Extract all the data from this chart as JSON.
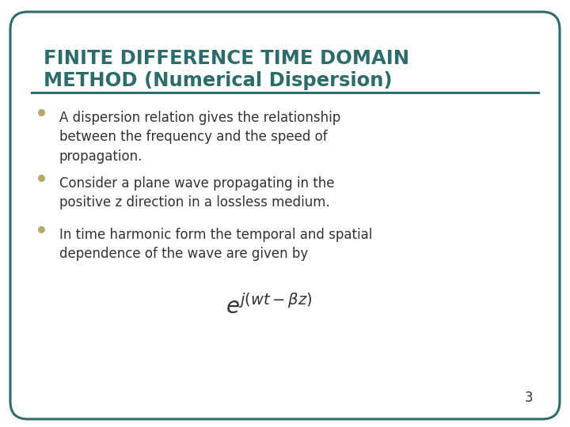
{
  "title_line1": "FINITE DIFFERENCE TIME DOMAIN",
  "title_line2": "METHOD (Numerical Dispersion)",
  "title_color": "#2E6B6B",
  "border_color": "#2E6B6B",
  "background_color": "#FFFFFF",
  "bullet_color": "#B8A96A",
  "text_color": "#333333",
  "bullet_points": [
    "A dispersion relation gives the relationship\nbetween the frequency and the speed of\npropagation.",
    "Consider a plane wave propagating in the\npositive z direction in a lossless medium.",
    "In time harmonic form the temporal and spatial\ndependence of the wave are given by"
  ],
  "formula": "$e^{j(wt-\\beta z)}$",
  "page_number": "3",
  "figsize": [
    7.2,
    5.4
  ],
  "dpi": 100
}
